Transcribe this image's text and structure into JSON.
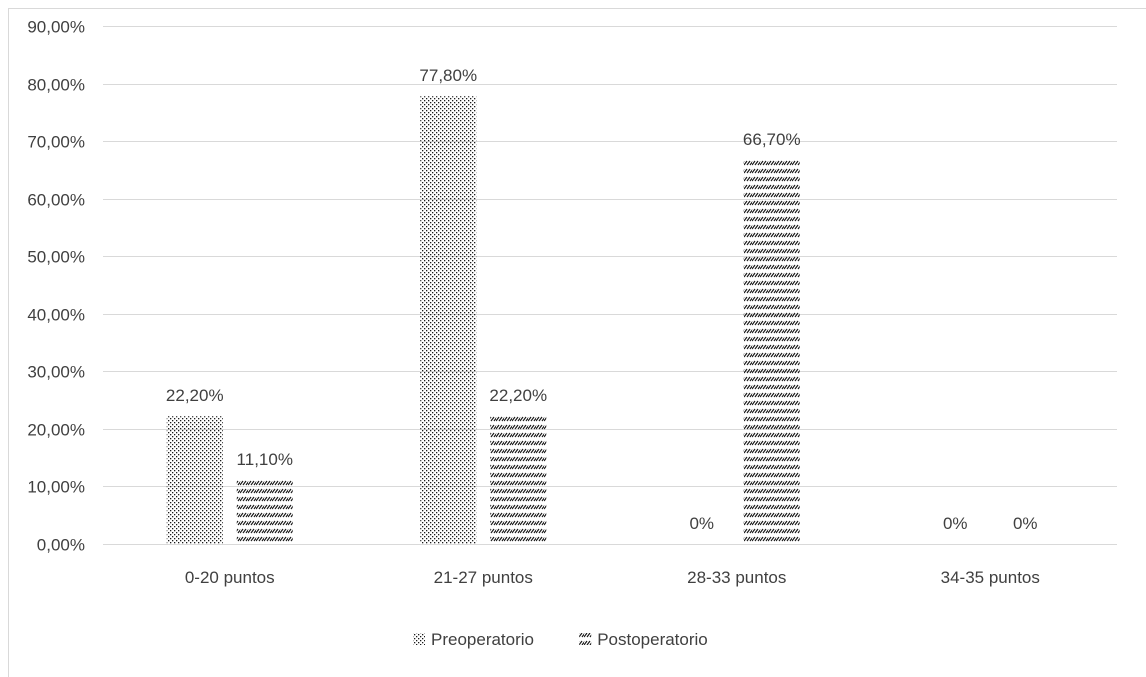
{
  "chart_data": {
    "type": "bar",
    "title": "",
    "xlabel": "",
    "ylabel": "",
    "categories": [
      "0-20 puntos",
      "21-27 puntos",
      "28-33 puntos",
      "34-35 puntos"
    ],
    "series": [
      {
        "name": "Preoperatorio",
        "pattern": "dots",
        "values": [
          22.2,
          77.8,
          0,
          0
        ],
        "labels": [
          "22,20%",
          "77,80%",
          "0%",
          "0%"
        ]
      },
      {
        "name": "Postoperatorio",
        "pattern": "diagonal-dashes",
        "values": [
          11.1,
          22.2,
          66.7,
          0
        ],
        "labels": [
          "11,10%",
          "22,20%",
          "66,70%",
          "0%"
        ]
      }
    ],
    "ylim": [
      0,
      90
    ],
    "yticks": [
      0,
      10,
      20,
      30,
      40,
      50,
      60,
      70,
      80,
      90
    ],
    "ytick_labels": [
      "0,00%",
      "10,00%",
      "20,00%",
      "30,00%",
      "40,00%",
      "50,00%",
      "60,00%",
      "70,00%",
      "80,00%",
      "90,00%"
    ],
    "grid": true,
    "legend_position": "bottom",
    "colors": {
      "bar_fill": "#1a1a1a",
      "grid": "#d9d9d9",
      "text": "#404040",
      "border": "#d9d9d9"
    }
  }
}
